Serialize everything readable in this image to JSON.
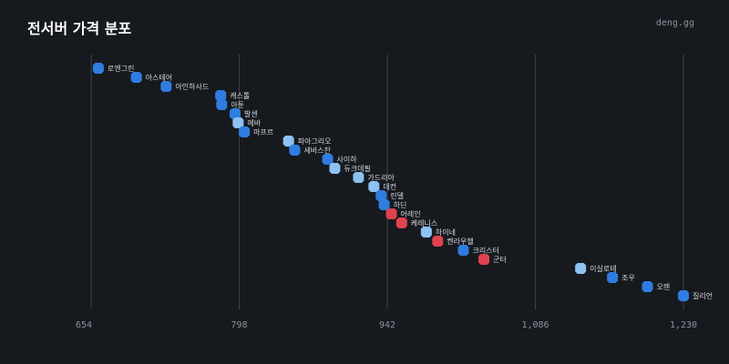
{
  "header": {
    "title": "전서버 가격 분포",
    "brand": "deng.gg"
  },
  "colors": {
    "background": "#161a1f",
    "high": "#2f7de1",
    "mid": "#8cc2f2",
    "low": "#e0424f",
    "grid": "#3a4149"
  },
  "chart_data": {
    "type": "scatter",
    "title": "전서버 가격 분포",
    "xlabel": "",
    "ylabel": "",
    "xlim": [
      654,
      1230
    ],
    "xticks": [
      654,
      798,
      942,
      1086,
      1230
    ],
    "xtick_labels": [
      "654",
      "798",
      "942",
      "1,086",
      "1,230"
    ],
    "grid": true,
    "points": [
      {
        "name": "로엔그린",
        "x": 661,
        "group": "high"
      },
      {
        "name": "아스테어",
        "x": 698,
        "group": "high"
      },
      {
        "name": "아인하사드",
        "x": 727,
        "group": "high"
      },
      {
        "name": "캐스톨",
        "x": 780,
        "group": "high"
      },
      {
        "name": "아툰",
        "x": 781,
        "group": "high"
      },
      {
        "name": "발센",
        "x": 794,
        "group": "high"
      },
      {
        "name": "에바",
        "x": 797,
        "group": "mid"
      },
      {
        "name": "마프르",
        "x": 803,
        "group": "high"
      },
      {
        "name": "파아그리오",
        "x": 846,
        "group": "mid"
      },
      {
        "name": "세바스찬",
        "x": 852,
        "group": "high"
      },
      {
        "name": "사이하",
        "x": 884,
        "group": "high"
      },
      {
        "name": "듀크데필",
        "x": 891,
        "group": "mid"
      },
      {
        "name": "가드리아",
        "x": 914,
        "group": "mid"
      },
      {
        "name": "데컨",
        "x": 929,
        "group": "mid"
      },
      {
        "name": "린델",
        "x": 936,
        "group": "high"
      },
      {
        "name": "하딘",
        "x": 939,
        "group": "high"
      },
      {
        "name": "어레인",
        "x": 946,
        "group": "low"
      },
      {
        "name": "케레니스",
        "x": 956,
        "group": "low"
      },
      {
        "name": "하이네",
        "x": 980,
        "group": "mid"
      },
      {
        "name": "켄라우헬",
        "x": 991,
        "group": "low"
      },
      {
        "name": "크리스터",
        "x": 1016,
        "group": "high"
      },
      {
        "name": "군터",
        "x": 1036,
        "group": "low"
      },
      {
        "name": "이실로테",
        "x": 1130,
        "group": "mid"
      },
      {
        "name": "조우",
        "x": 1161,
        "group": "high"
      },
      {
        "name": "오렌",
        "x": 1195,
        "group": "high"
      },
      {
        "name": "질리언",
        "x": 1230,
        "group": "high"
      }
    ]
  }
}
